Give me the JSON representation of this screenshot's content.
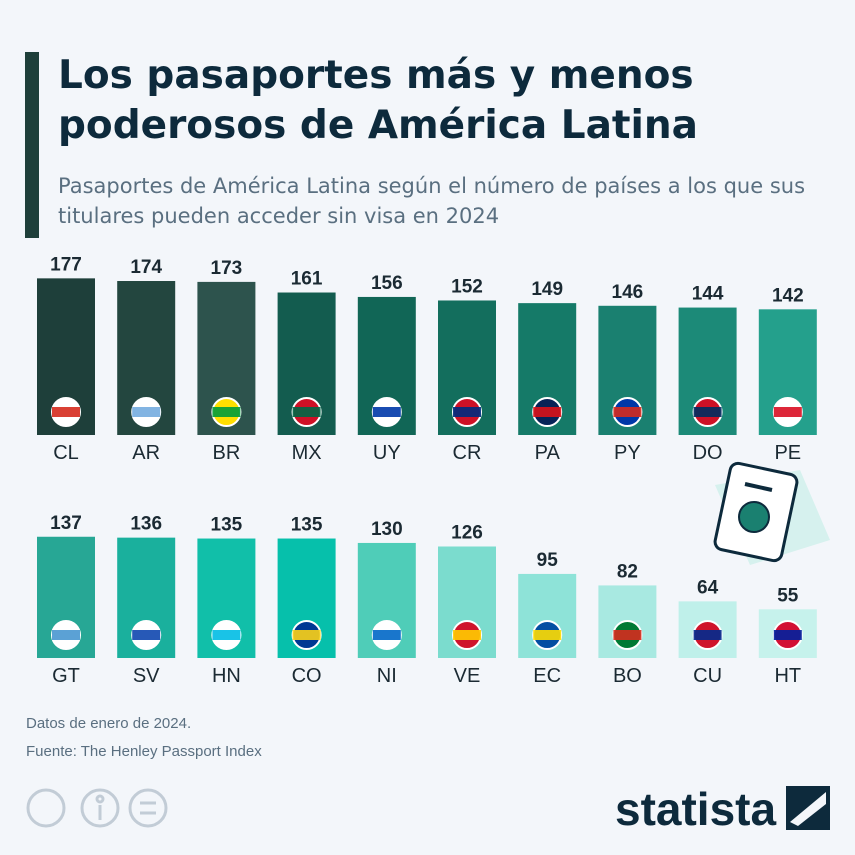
{
  "chart_data": {
    "type": "bar",
    "title": "Los pasaportes más y menos poderosos de América Latina",
    "subtitle": "Pasaportes de América Latina según el número de países a los que sus titulares pueden acceder sin visa en 2024",
    "categories": [
      "CL",
      "AR",
      "BR",
      "MX",
      "UY",
      "CR",
      "PA",
      "PY",
      "DO",
      "PE",
      "GT",
      "SV",
      "HN",
      "CO",
      "NI",
      "VE",
      "EC",
      "BO",
      "CU",
      "HT"
    ],
    "values": [
      177,
      174,
      173,
      161,
      156,
      152,
      149,
      146,
      144,
      142,
      137,
      136,
      135,
      135,
      130,
      126,
      95,
      82,
      64,
      55
    ],
    "colors": [
      "#1e3f3a",
      "#23463f",
      "#2d534d",
      "#135c4f",
      "#116656",
      "#136e5d",
      "#157a68",
      "#1a8070",
      "#1c8a78",
      "#24a08c",
      "#27a795",
      "#1ab09d",
      "#11bfa9",
      "#06c0ab",
      "#4fcdb8",
      "#7bdcce",
      "#8ee3d8",
      "#a8e9e1",
      "#bff0ea",
      "#c6f2ec"
    ],
    "note": "Datos de enero de 2024.",
    "source": "Fuente: The Henley Passport Index",
    "brand": "statista"
  }
}
